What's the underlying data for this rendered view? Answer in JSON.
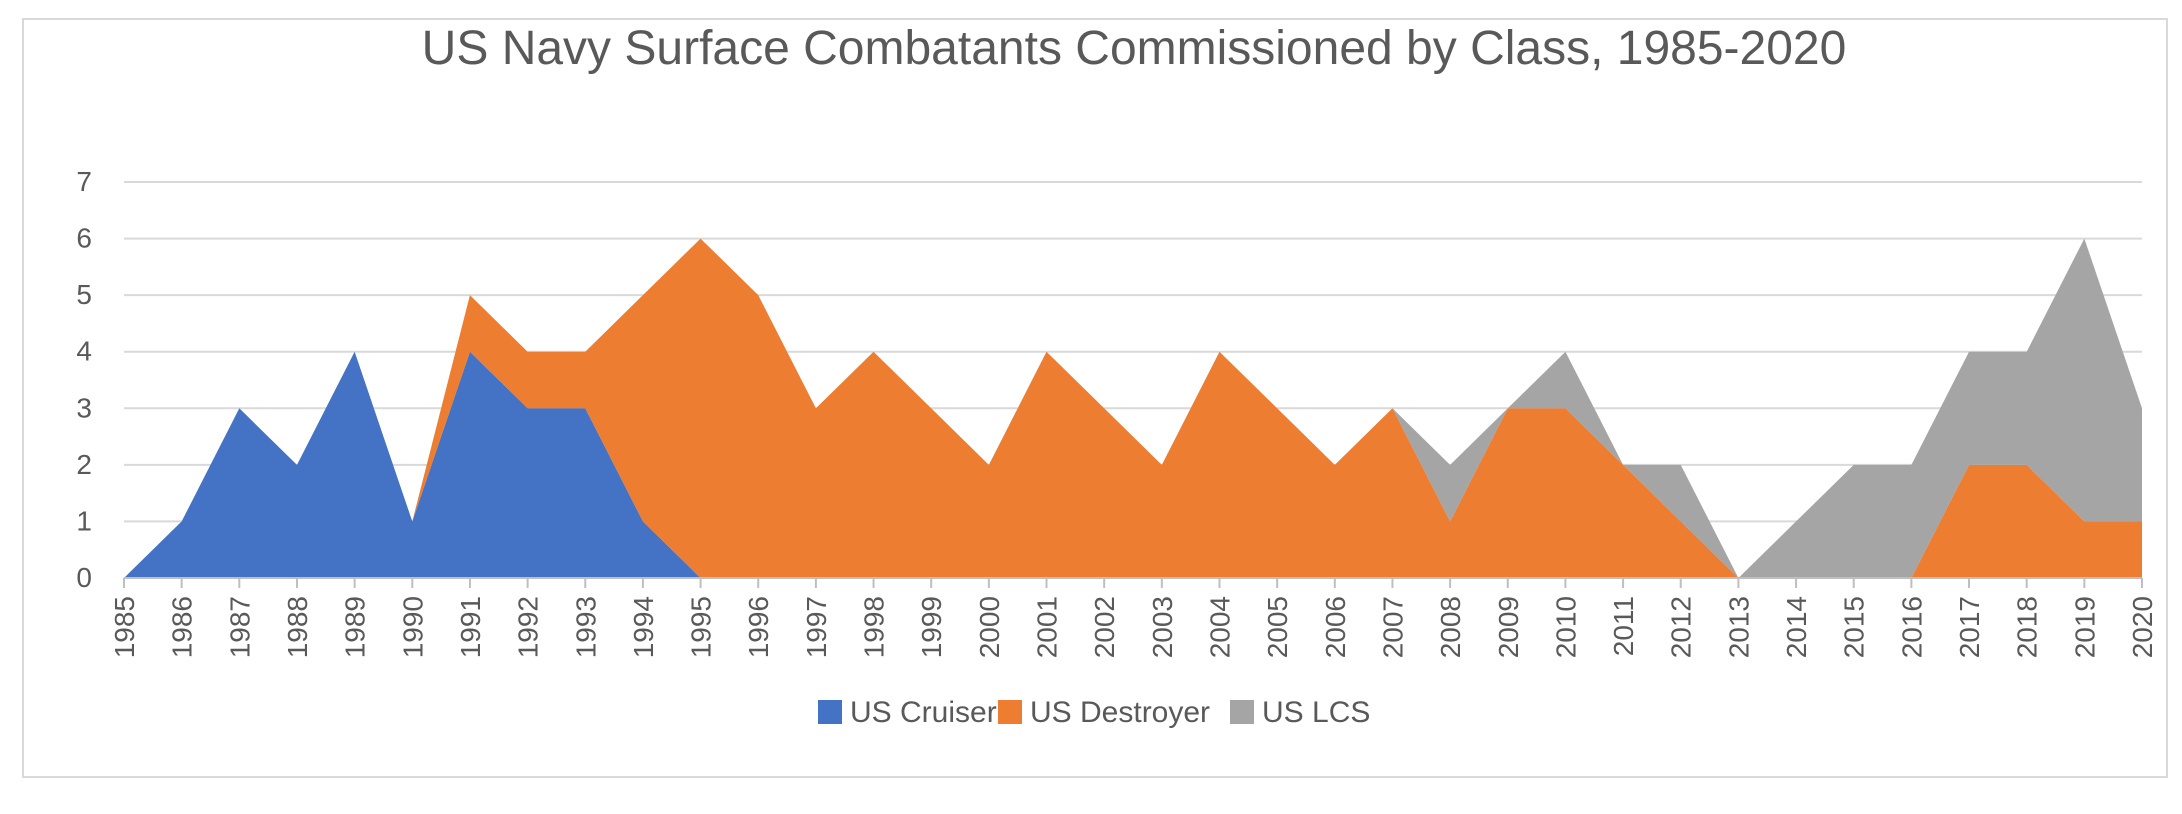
{
  "chart_data": {
    "type": "area",
    "stacked": true,
    "title": "US Navy Surface Combatants Commissioned by Class, 1985-2020",
    "xlabel": "",
    "ylabel": "",
    "ylim": [
      0,
      7
    ],
    "yticks": [
      0,
      1,
      2,
      3,
      4,
      5,
      6,
      7
    ],
    "grid": true,
    "legend_position": "bottom",
    "categories": [
      "1985",
      "1986",
      "1987",
      "1988",
      "1989",
      "1990",
      "1991",
      "1992",
      "1993",
      "1994",
      "1995",
      "1996",
      "1997",
      "1998",
      "1999",
      "2000",
      "2001",
      "2002",
      "2003",
      "2004",
      "2005",
      "2006",
      "2007",
      "2008",
      "2009",
      "2010",
      "2011",
      "2012",
      "2013",
      "2014",
      "2015",
      "2016",
      "2017",
      "2018",
      "2019",
      "2020"
    ],
    "series": [
      {
        "name": "US Cruiser",
        "color": "#4472c4",
        "values": [
          0,
          1,
          3,
          2,
          4,
          1,
          4,
          3,
          3,
          1,
          0,
          0,
          0,
          0,
          0,
          0,
          0,
          0,
          0,
          0,
          0,
          0,
          0,
          0,
          0,
          0,
          0,
          0,
          0,
          0,
          0,
          0,
          0,
          0,
          0,
          0
        ]
      },
      {
        "name": "US Destroyer",
        "color": "#ed7d31",
        "values": [
          0,
          0,
          0,
          0,
          0,
          0,
          1,
          1,
          1,
          4,
          6,
          5,
          3,
          4,
          3,
          2,
          4,
          3,
          2,
          4,
          3,
          2,
          3,
          1,
          3,
          3,
          2,
          1,
          0,
          0,
          0,
          0,
          2,
          2,
          1,
          1
        ]
      },
      {
        "name": "US LCS",
        "color": "#a5a5a5",
        "values": [
          0,
          0,
          0,
          0,
          0,
          0,
          0,
          0,
          0,
          0,
          0,
          0,
          0,
          0,
          0,
          0,
          0,
          0,
          0,
          0,
          0,
          0,
          0,
          1,
          0,
          1,
          0,
          1,
          0,
          1,
          2,
          2,
          2,
          2,
          5,
          2
        ]
      }
    ]
  }
}
